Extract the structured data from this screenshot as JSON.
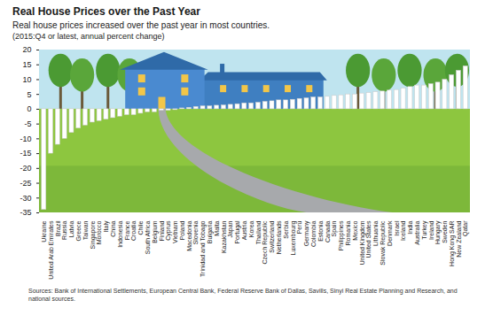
{
  "chart_data": {
    "type": "bar",
    "title": "Real House Prices over the Past Year",
    "subtitle": "Real house prices increased over the past year in most countries.",
    "note": "(2015:Q4 or latest, annual percent change)",
    "source": "Sources: Bank of International Settlements, European Central Bank, Federal Reserve Bank of Dallas, Savills, Sinyi Real Estate Planning and Research, and national sources.",
    "categories": [
      "Ukraine",
      "United Arab Emirates",
      "Brazil",
      "Russia",
      "Latvia",
      "Greece",
      "Taiwan",
      "Singapore",
      "Morocco",
      "Italy",
      "China",
      "Indonesia",
      "France",
      "Croatia",
      "Chile",
      "South Africa",
      "Belgium",
      "Finland",
      "Cyprus",
      "Vietnam",
      "Poland",
      "Macedonia",
      "Slovenia",
      "Trinidad and Tobago",
      "Bulgaria",
      "Malta",
      "Kazakhstan",
      "Japan",
      "Portugal",
      "Austria",
      "Korea",
      "Thailand",
      "Czech Republic",
      "Switzerland",
      "Netherlands",
      "Serbia",
      "Luxembourg",
      "Peru",
      "Germany",
      "Colombia",
      "Estonia",
      "Canada",
      "Spain",
      "Philippines",
      "Romania",
      "Mexico",
      "United Kingdom",
      "United States",
      "Lithuania",
      "Slovak Republic",
      "Denmark",
      "Israel",
      "Iceland",
      "India",
      "Australia",
      "Turkey",
      "Ireland",
      "Hungary",
      "Sweden",
      "Hong Kong SAR",
      "New Zealand",
      "Qatar"
    ],
    "values": [
      -34,
      -15,
      -12,
      -10,
      -8,
      -6.5,
      -5.5,
      -4.5,
      -4,
      -3.5,
      -3,
      -2.5,
      -2,
      -2,
      -1.5,
      -1,
      -1,
      -0.5,
      -0.5,
      -0.3,
      0.3,
      0.5,
      0.8,
      1,
      1,
      1.2,
      1.3,
      1.5,
      1.7,
      2,
      2,
      2.2,
      2.5,
      2.7,
      3,
      3,
      3.2,
      3.5,
      3.7,
      4,
      4,
      4.2,
      4.5,
      4.7,
      5,
      5,
      5.3,
      5.5,
      5.8,
      6,
      6.3,
      6.5,
      7,
      7.5,
      8,
      8,
      8.5,
      9,
      10,
      11.5,
      13,
      14.5
    ],
    "color": "#ffffff",
    "ylim": [
      -35,
      20
    ],
    "yticks": [
      -35,
      -30,
      -25,
      -20,
      -15,
      -10,
      -5,
      0,
      5,
      10,
      15,
      20
    ],
    "grid": false
  }
}
